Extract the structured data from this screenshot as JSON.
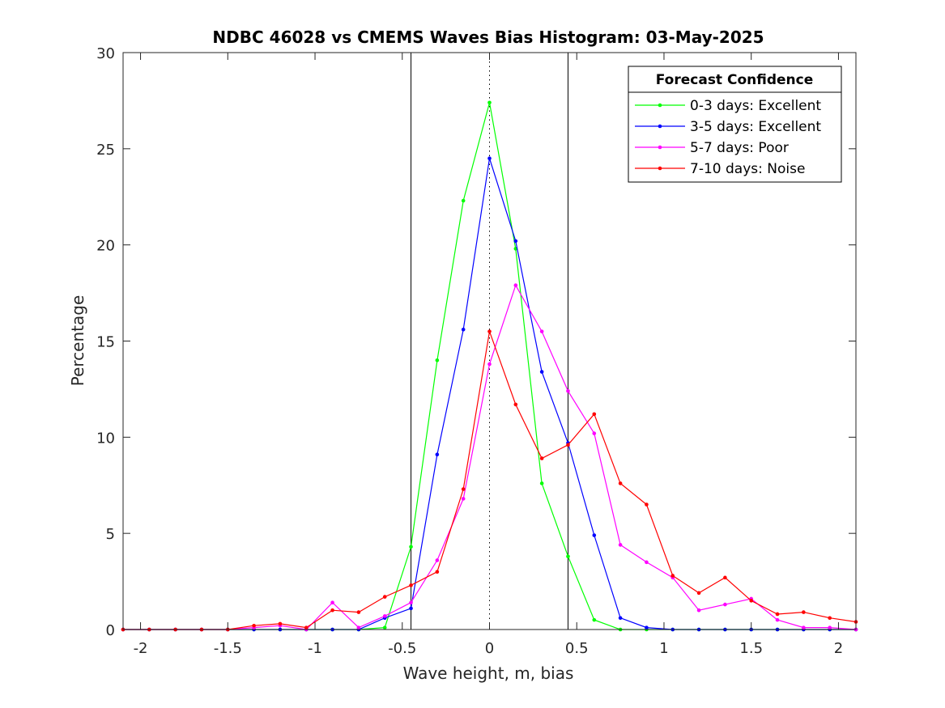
{
  "chart_data": {
    "type": "line",
    "title": "NDBC 46028 vs CMEMS Waves Bias Histogram: 03-May-2025",
    "xlabel": "Wave height, m, bias",
    "ylabel": "Percentage",
    "xlim": [
      -2.1,
      2.1
    ],
    "ylim": [
      0,
      30
    ],
    "xticks": [
      -2,
      -1.5,
      -1,
      -0.5,
      0,
      0.5,
      1,
      1.5,
      2
    ],
    "xtick_labels": [
      "-2",
      "-1.5",
      "-1",
      "-0.5",
      "0",
      "0.5",
      "1",
      "1.5",
      "2"
    ],
    "yticks": [
      0,
      5,
      10,
      15,
      20,
      25,
      30
    ],
    "ytick_labels": [
      "0",
      "5",
      "10",
      "15",
      "20",
      "25",
      "30"
    ],
    "grid": false,
    "vertical_lines": [
      {
        "x": -0.45,
        "style": "solid"
      },
      {
        "x": 0,
        "style": "dotted"
      },
      {
        "x": 0.45,
        "style": "solid"
      }
    ],
    "legend": {
      "title": "Forecast Confidence",
      "placement": "top-right"
    },
    "x": [
      -2.1,
      -1.95,
      -1.8,
      -1.65,
      -1.5,
      -1.35,
      -1.2,
      -1.05,
      -0.9,
      -0.75,
      -0.6,
      -0.45,
      -0.3,
      -0.15,
      0,
      0.15,
      0.3,
      0.45,
      0.6,
      0.75,
      0.9,
      1.05,
      1.2,
      1.35,
      1.5,
      1.65,
      1.8,
      1.95,
      2.1
    ],
    "series": [
      {
        "name": "0-3 days: Excellent",
        "color": "#00ff00",
        "values": [
          0,
          0,
          0,
          0,
          0,
          0,
          0,
          0,
          0,
          0,
          0.1,
          4.3,
          14.0,
          22.3,
          27.4,
          19.8,
          7.6,
          3.8,
          0.5,
          0,
          0,
          0,
          0,
          0,
          0,
          0,
          0,
          0,
          0
        ]
      },
      {
        "name": "3-5 days: Excellent",
        "color": "#0000ff",
        "values": [
          0,
          0,
          0,
          0,
          0,
          0,
          0,
          0,
          0,
          0,
          0.6,
          1.1,
          9.1,
          15.6,
          24.5,
          20.2,
          13.4,
          9.7,
          4.9,
          0.6,
          0.1,
          0,
          0,
          0,
          0,
          0,
          0,
          0,
          0
        ]
      },
      {
        "name": "5-7 days: Poor",
        "color": "#ff00ff",
        "values": [
          0,
          0,
          0,
          0,
          0,
          0.1,
          0.2,
          0,
          1.4,
          0.1,
          0.7,
          1.4,
          3.6,
          6.8,
          13.8,
          17.9,
          15.5,
          12.4,
          10.2,
          4.4,
          3.5,
          2.7,
          1.0,
          1.3,
          1.6,
          0.5,
          0.1,
          0.1,
          0
        ]
      },
      {
        "name": "7-10 days: Noise",
        "color": "#ff0000",
        "values": [
          0,
          0,
          0,
          0,
          0,
          0.2,
          0.3,
          0.1,
          1.0,
          0.9,
          1.7,
          2.3,
          3.0,
          7.3,
          15.5,
          11.7,
          8.9,
          9.6,
          11.2,
          7.6,
          6.5,
          2.8,
          1.9,
          2.7,
          1.5,
          0.8,
          0.9,
          0.6,
          0.4
        ]
      }
    ]
  }
}
